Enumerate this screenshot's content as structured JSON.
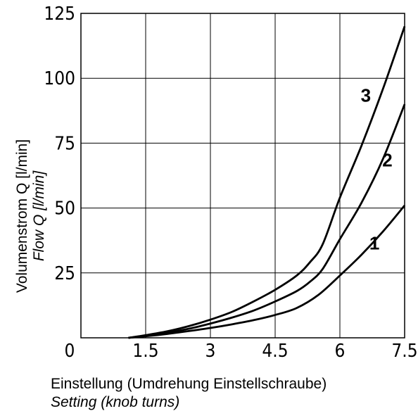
{
  "chart_data": {
    "type": "line",
    "title": "",
    "xlabel": "Einstellung (Umdrehung Einstellschraube)",
    "xlabel_secondary": "Setting (knob turns)",
    "ylabel": "Volumenstrom Q [l/min]",
    "ylabel_secondary": "Flow Q [l/min]",
    "xlim": [
      0,
      7.5
    ],
    "ylim": [
      0,
      125
    ],
    "x_ticks": [
      "0",
      "1.5",
      "3",
      "4.5",
      "6",
      "7.5"
    ],
    "y_ticks": [
      "25",
      "50",
      "75",
      "100",
      "125"
    ],
    "grid": true,
    "legend": "none",
    "series": [
      {
        "name": "1",
        "points": [
          [
            1.1,
            0
          ],
          [
            1.5,
            0.6
          ],
          [
            2.0,
            1.5
          ],
          [
            2.5,
            2.6
          ],
          [
            3.0,
            3.8
          ],
          [
            3.5,
            5.2
          ],
          [
            4.0,
            6.8
          ],
          [
            4.5,
            8.8
          ],
          [
            5.0,
            11.5
          ],
          [
            5.5,
            16.5
          ],
          [
            6.0,
            24
          ],
          [
            6.5,
            32
          ],
          [
            7.0,
            41
          ],
          [
            7.5,
            51
          ]
        ]
      },
      {
        "name": "2",
        "points": [
          [
            1.1,
            0
          ],
          [
            1.5,
            0.8
          ],
          [
            2.0,
            2.0
          ],
          [
            2.5,
            3.5
          ],
          [
            3.0,
            5.5
          ],
          [
            3.5,
            7.8
          ],
          [
            4.0,
            10.5
          ],
          [
            4.5,
            14.0
          ],
          [
            5.0,
            18.0
          ],
          [
            5.3,
            21.5
          ],
          [
            5.6,
            26.5
          ],
          [
            6.0,
            38
          ],
          [
            6.5,
            52
          ],
          [
            7.0,
            69
          ],
          [
            7.5,
            90
          ]
        ]
      },
      {
        "name": "3",
        "points": [
          [
            1.1,
            0
          ],
          [
            1.5,
            1.0
          ],
          [
            2.0,
            2.5
          ],
          [
            2.5,
            4.5
          ],
          [
            3.0,
            7.0
          ],
          [
            3.5,
            10.0
          ],
          [
            4.0,
            14.0
          ],
          [
            4.5,
            18.5
          ],
          [
            5.0,
            24.0
          ],
          [
            5.3,
            29.0
          ],
          [
            5.6,
            36.0
          ],
          [
            6.0,
            54
          ],
          [
            6.5,
            74
          ],
          [
            7.0,
            96
          ],
          [
            7.5,
            120
          ]
        ]
      }
    ],
    "curve_labels": [
      {
        "text": "1",
        "x": 6.8,
        "y": 34
      },
      {
        "text": "2",
        "x": 7.1,
        "y": 66
      },
      {
        "text": "3",
        "x": 6.6,
        "y": 91
      }
    ]
  }
}
